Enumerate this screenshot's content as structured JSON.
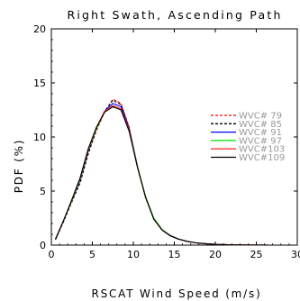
{
  "chart_data": {
    "type": "line",
    "title": "Right Swath, Ascending Path",
    "xlabel": "RSCAT Wind Speed (m/s)",
    "ylabel": "PDF (%)",
    "xlim": [
      0,
      30
    ],
    "ylim": [
      0,
      20
    ],
    "xticks": [
      "0",
      "5",
      "10",
      "15",
      "20",
      "25",
      "30"
    ],
    "yticks": [
      "0",
      "5",
      "10",
      "15",
      "20"
    ],
    "grid": false,
    "legend_position": "right-middle",
    "x": [
      0.5,
      1.5,
      2.5,
      3.5,
      4.5,
      5.5,
      6.5,
      7.5,
      8.5,
      9.5,
      10.5,
      11.5,
      12.5,
      13.5,
      14.5,
      15.5,
      16.5,
      17.5,
      18.5,
      19.5,
      20.5,
      21.5,
      22.5,
      23.5,
      24.5,
      25.5,
      26.5,
      27.5,
      28.5,
      29.5
    ],
    "series": [
      {
        "name": "WVC# 79",
        "color": "#ff0000",
        "dash": "dashed",
        "values": [
          0.5,
          2.2,
          4.0,
          5.7,
          8.4,
          10.6,
          12.3,
          13.5,
          13.1,
          10.9,
          7.3,
          4.4,
          2.4,
          1.4,
          0.85,
          0.55,
          0.35,
          0.22,
          0.14,
          0.09,
          0.06,
          0.04,
          0.03,
          0.02,
          0.01,
          0.01,
          0.0,
          0.0,
          0.0,
          0.0
        ]
      },
      {
        "name": "WVC# 85",
        "color": "#000000",
        "dash": "dashed",
        "values": [
          0.5,
          2.2,
          4.0,
          5.8,
          8.5,
          10.7,
          12.4,
          13.4,
          13.0,
          10.8,
          7.3,
          4.4,
          2.4,
          1.4,
          0.85,
          0.55,
          0.35,
          0.22,
          0.14,
          0.09,
          0.06,
          0.04,
          0.03,
          0.02,
          0.01,
          0.01,
          0.0,
          0.0,
          0.0,
          0.0
        ]
      },
      {
        "name": "WVC# 91",
        "color": "#0000ff",
        "dash": "solid",
        "values": [
          0.5,
          2.3,
          4.1,
          6.0,
          8.7,
          10.8,
          12.4,
          13.1,
          12.8,
          10.7,
          7.3,
          4.4,
          2.4,
          1.4,
          0.85,
          0.55,
          0.35,
          0.22,
          0.14,
          0.09,
          0.06,
          0.04,
          0.03,
          0.02,
          0.01,
          0.01,
          0.0,
          0.0,
          0.0,
          0.0
        ]
      },
      {
        "name": "WVC# 97",
        "color": "#00dd00",
        "dash": "solid",
        "values": [
          0.55,
          2.3,
          4.1,
          6.1,
          8.8,
          10.8,
          12.3,
          12.8,
          12.5,
          10.6,
          7.3,
          4.5,
          2.5,
          1.45,
          0.9,
          0.58,
          0.37,
          0.23,
          0.15,
          0.1,
          0.06,
          0.04,
          0.03,
          0.02,
          0.01,
          0.01,
          0.0,
          0.0,
          0.0,
          0.0
        ]
      },
      {
        "name": "WVC#103",
        "color": "#ff3333",
        "dash": "solid",
        "values": [
          0.55,
          2.3,
          4.2,
          6.2,
          8.9,
          10.9,
          12.4,
          12.9,
          12.6,
          10.6,
          7.2,
          4.4,
          2.4,
          1.4,
          0.88,
          0.56,
          0.36,
          0.23,
          0.15,
          0.1,
          0.06,
          0.04,
          0.03,
          0.02,
          0.01,
          0.01,
          0.0,
          0.0,
          0.0,
          0.0
        ]
      },
      {
        "name": "WVC#109",
        "color": "#000000",
        "dash": "solid",
        "values": [
          0.55,
          2.3,
          4.2,
          6.2,
          8.9,
          10.9,
          12.3,
          12.8,
          12.5,
          10.5,
          7.2,
          4.4,
          2.4,
          1.4,
          0.88,
          0.56,
          0.36,
          0.23,
          0.15,
          0.1,
          0.06,
          0.04,
          0.03,
          0.02,
          0.01,
          0.01,
          0.0,
          0.0,
          0.0,
          0.0
        ]
      }
    ]
  }
}
